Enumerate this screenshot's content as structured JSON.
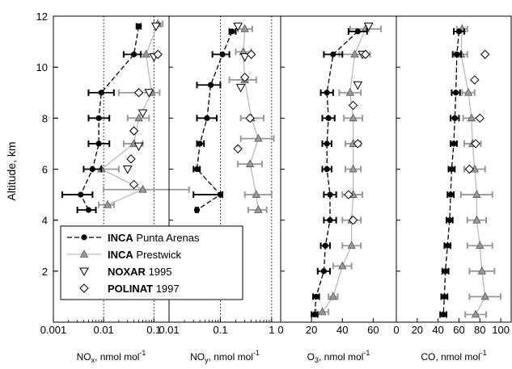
{
  "chart_data": {
    "type": "scatter",
    "ylabel": "Altitude, km",
    "ylim": [
      0,
      12
    ],
    "yticks": [
      "2",
      "4",
      "6",
      "8",
      "10",
      "12"
    ],
    "legend": {
      "placement": "lower-left",
      "entries": [
        {
          "bold": "INCA",
          "text": " Punta Arenas",
          "marker": "filled-circle",
          "line": "dashed",
          "color": "#000000"
        },
        {
          "bold": "INCA",
          "text": " Prestwick",
          "marker": "gray-triangle",
          "line": "solid",
          "color": "#999999"
        },
        {
          "bold": "NOXAR",
          "text": " 1995",
          "marker": "open-triangle-down",
          "line": "none",
          "color": "#000000"
        },
        {
          "bold": "POLINAT",
          "text": " 1997",
          "marker": "open-diamond",
          "line": "none",
          "color": "#000000"
        }
      ]
    },
    "panels": [
      {
        "id": "nox",
        "xlabel_main": "NO",
        "xlabel_sub": "x",
        "xlabel_rest": ", nmol mol",
        "xlabel_sup": "-1",
        "scale": "log",
        "xlim": [
          0.001,
          0.2
        ],
        "xticks": [
          {
            "v": 0.001,
            "t": "0.001"
          },
          {
            "v": 0.01,
            "t": "0.01"
          },
          {
            "v": 0.1,
            "t": "0.1"
          }
        ],
        "dotted_grid": [
          0.001,
          0.01,
          0.1
        ],
        "punta_arenas": [
          {
            "alt": 11.6,
            "x": 0.05,
            "lo": 0.045,
            "hi": 0.055
          },
          {
            "alt": 10.5,
            "x": 0.04,
            "lo": 0.025,
            "hi": 0.055
          },
          {
            "alt": 9.0,
            "x": 0.009,
            "lo": 0.005,
            "hi": 0.016
          },
          {
            "alt": 8.0,
            "x": 0.008,
            "lo": 0.005,
            "hi": 0.013
          },
          {
            "alt": 7.0,
            "x": 0.008,
            "lo": 0.005,
            "hi": 0.013
          },
          {
            "alt": 6.0,
            "x": 0.006,
            "lo": 0.004,
            "hi": 0.009
          },
          {
            "alt": 5.0,
            "x": 0.0035,
            "lo": 0.0015,
            "hi": 0.006
          },
          {
            "alt": 4.4,
            "x": 0.005,
            "lo": 0.003,
            "hi": 0.007
          }
        ],
        "prestwick": [
          {
            "alt": 11.7,
            "x": 0.12,
            "lo": 0.1,
            "hi": 0.15
          },
          {
            "alt": 10.5,
            "x": 0.07,
            "lo": 0.04,
            "hi": 0.1
          },
          {
            "alt": 9.0,
            "x": 0.09,
            "lo": 0.02,
            "hi": 0.13
          },
          {
            "alt": 8.0,
            "x": 0.05,
            "lo": 0.03,
            "hi": 0.08
          },
          {
            "alt": 7.0,
            "x": 0.04,
            "lo": 0.025,
            "hi": 0.06
          },
          {
            "alt": 6.0,
            "x": 0.009,
            "lo": 0.006,
            "hi": 0.02
          },
          {
            "alt": 5.2,
            "x": 0.06,
            "lo": 0.01,
            "hi": 0.5
          },
          {
            "alt": 4.6,
            "x": 0.012,
            "lo": 0.008,
            "hi": 0.016
          }
        ],
        "noxar": [
          {
            "alt": 11.6,
            "x": 0.11
          },
          {
            "alt": 10.4,
            "x": 0.1
          },
          {
            "alt": 9.0,
            "x": 0.08
          },
          {
            "alt": 8.2,
            "x": 0.06
          },
          {
            "alt": 6.9,
            "x": 0.05
          },
          {
            "alt": 6.0,
            "x": 0.03
          }
        ],
        "polinat": [
          {
            "alt": 10.5,
            "x": 0.12
          },
          {
            "alt": 9.0,
            "x": 0.05
          },
          {
            "alt": 7.5,
            "x": 0.04
          },
          {
            "alt": 6.4,
            "x": 0.035
          },
          {
            "alt": 5.4,
            "x": 0.04
          }
        ]
      },
      {
        "id": "noy",
        "xlabel_main": "NO",
        "xlabel_sub": "y",
        "xlabel_rest": ", nmol mol",
        "xlabel_sup": "-1",
        "scale": "log",
        "xlim": [
          0.01,
          1.5
        ],
        "xticks": [
          {
            "v": 0.01,
            "t": "0.01"
          },
          {
            "v": 0.1,
            "t": "0.1"
          },
          {
            "v": 1,
            "t": "1"
          }
        ],
        "dotted_grid": [
          0.1,
          1
        ],
        "punta_arenas": [
          {
            "alt": 11.4,
            "x": 0.17,
            "lo": 0.15,
            "hi": 0.2
          },
          {
            "alt": 10.5,
            "x": 0.11,
            "lo": 0.07,
            "hi": 0.15
          },
          {
            "alt": 9.3,
            "x": 0.065,
            "lo": 0.035,
            "hi": 0.1
          },
          {
            "alt": 8.0,
            "x": 0.055,
            "lo": 0.035,
            "hi": 0.085
          },
          {
            "alt": 7.0,
            "x": 0.04,
            "lo": 0.035,
            "hi": 0.048
          },
          {
            "alt": 6.0,
            "x": 0.035,
            "lo": 0.03,
            "hi": 0.04
          },
          {
            "alt": 5.0,
            "x": 0.1,
            "lo": 0.03,
            "hi": 0.11
          },
          {
            "alt": 4.4,
            "x": 0.035,
            "lo": 0.033,
            "hi": 0.037
          }
        ],
        "prestwick": [
          {
            "alt": 11.5,
            "x": 0.3,
            "lo": 0.22,
            "hi": 0.42
          },
          {
            "alt": 10.6,
            "x": 0.28,
            "lo": 0.2,
            "hi": 0.4
          },
          {
            "alt": 9.5,
            "x": 0.3,
            "lo": 0.15,
            "hi": 0.5
          },
          {
            "alt": 8.0,
            "x": 0.4,
            "lo": 0.25,
            "hi": 0.7
          },
          {
            "alt": 7.2,
            "x": 0.55,
            "lo": 0.25,
            "hi": 1.1
          },
          {
            "alt": 6.2,
            "x": 0.38,
            "lo": 0.22,
            "hi": 0.65
          },
          {
            "alt": 5.0,
            "x": 0.5,
            "lo": 0.3,
            "hi": 1.0
          },
          {
            "alt": 4.4,
            "x": 0.55,
            "lo": 0.35,
            "hi": 0.8
          }
        ],
        "noxar": [
          {
            "alt": 11.6,
            "x": 0.22
          },
          {
            "alt": 10.4,
            "x": 0.3
          },
          {
            "alt": 9.2,
            "x": 0.25
          }
        ],
        "polinat": [
          {
            "alt": 10.5,
            "x": 0.4
          },
          {
            "alt": 9.6,
            "x": 0.3
          },
          {
            "alt": 8.0,
            "x": 0.38
          },
          {
            "alt": 6.8,
            "x": 0.22
          }
        ]
      },
      {
        "id": "o3",
        "xlabel_main": "O",
        "xlabel_sub": "3",
        "xlabel_rest": ", nmol mol",
        "xlabel_sup": "-1",
        "scale": "linear",
        "xlim": [
          0,
          75
        ],
        "xticks": [
          {
            "v": 0,
            "t": "0"
          },
          {
            "v": 20,
            "t": "20"
          },
          {
            "v": 40,
            "t": "40"
          },
          {
            "v": 60,
            "t": "60"
          }
        ],
        "dotted_grid": [],
        "punta_arenas": [
          {
            "alt": 11.4,
            "x": 50,
            "lo": 44,
            "hi": 56
          },
          {
            "alt": 10.5,
            "x": 34,
            "lo": 28,
            "hi": 40
          },
          {
            "alt": 9.0,
            "x": 30,
            "lo": 26,
            "hi": 34
          },
          {
            "alt": 8.0,
            "x": 31,
            "lo": 27,
            "hi": 35
          },
          {
            "alt": 7.0,
            "x": 30,
            "lo": 27,
            "hi": 33
          },
          {
            "alt": 6.0,
            "x": 30,
            "lo": 27,
            "hi": 33
          },
          {
            "alt": 5.0,
            "x": 32,
            "lo": 28,
            "hi": 36
          },
          {
            "alt": 4.0,
            "x": 32,
            "lo": 28,
            "hi": 36
          },
          {
            "alt": 3.0,
            "x": 29,
            "lo": 26,
            "hi": 32
          },
          {
            "alt": 2.0,
            "x": 28,
            "lo": 24,
            "hi": 32
          },
          {
            "alt": 1.0,
            "x": 23,
            "lo": 21,
            "hi": 25
          },
          {
            "alt": 0.3,
            "x": 22,
            "lo": 20,
            "hi": 24
          }
        ],
        "prestwick": [
          {
            "alt": 11.5,
            "x": 55,
            "lo": 45,
            "hi": 65
          },
          {
            "alt": 10.5,
            "x": 48,
            "lo": 38,
            "hi": 58
          },
          {
            "alt": 9.0,
            "x": 45,
            "lo": 38,
            "hi": 52
          },
          {
            "alt": 8.0,
            "x": 47,
            "lo": 41,
            "hi": 53
          },
          {
            "alt": 7.0,
            "x": 47,
            "lo": 42,
            "hi": 52
          },
          {
            "alt": 6.0,
            "x": 47,
            "lo": 42,
            "hi": 52
          },
          {
            "alt": 5.0,
            "x": 47,
            "lo": 40,
            "hi": 53
          },
          {
            "alt": 4.0,
            "x": 46,
            "lo": 40,
            "hi": 52
          },
          {
            "alt": 3.0,
            "x": 46,
            "lo": 40,
            "hi": 52
          },
          {
            "alt": 2.2,
            "x": 40,
            "lo": 34,
            "hi": 46
          },
          {
            "alt": 1.0,
            "x": 34,
            "lo": 31,
            "hi": 37
          },
          {
            "alt": 0.4,
            "x": 27,
            "lo": 23,
            "hi": 31
          }
        ],
        "noxar": [
          {
            "alt": 11.6,
            "x": 57
          },
          {
            "alt": 10.5,
            "x": 53
          },
          {
            "alt": 9.3,
            "x": 50
          }
        ],
        "polinat": [
          {
            "alt": 10.5,
            "x": 55
          },
          {
            "alt": 8.5,
            "x": 47
          },
          {
            "alt": 7.0,
            "x": 50
          },
          {
            "alt": 5.0,
            "x": 44
          },
          {
            "alt": 4.0,
            "x": 47
          }
        ]
      },
      {
        "id": "co",
        "xlabel_main": "CO",
        "xlabel_sub": "",
        "xlabel_rest": ", nmol mol",
        "xlabel_sup": "-1",
        "scale": "linear",
        "xlim": [
          0,
          110
        ],
        "xticks": [
          {
            "v": 0,
            "t": "0"
          },
          {
            "v": 20,
            "t": "20"
          },
          {
            "v": 40,
            "t": "40"
          },
          {
            "v": 60,
            "t": "60"
          },
          {
            "v": 80,
            "t": "80"
          },
          {
            "v": 100,
            "t": "100"
          }
        ],
        "dotted_grid": [],
        "punta_arenas": [
          {
            "alt": 11.4,
            "x": 60,
            "lo": 55,
            "hi": 65
          },
          {
            "alt": 10.5,
            "x": 58,
            "lo": 54,
            "hi": 62
          },
          {
            "alt": 9.0,
            "x": 57,
            "lo": 53,
            "hi": 61
          },
          {
            "alt": 8.0,
            "x": 56,
            "lo": 52,
            "hi": 60
          },
          {
            "alt": 7.0,
            "x": 55,
            "lo": 52,
            "hi": 58
          },
          {
            "alt": 6.0,
            "x": 53,
            "lo": 50,
            "hi": 56
          },
          {
            "alt": 5.0,
            "x": 52,
            "lo": 49,
            "hi": 55
          },
          {
            "alt": 4.0,
            "x": 51,
            "lo": 48,
            "hi": 54
          },
          {
            "alt": 3.0,
            "x": 49,
            "lo": 46,
            "hi": 52
          },
          {
            "alt": 2.0,
            "x": 47,
            "lo": 44,
            "hi": 50
          },
          {
            "alt": 1.0,
            "x": 46,
            "lo": 43,
            "hi": 49
          },
          {
            "alt": 0.3,
            "x": 45,
            "lo": 42,
            "hi": 48
          }
        ],
        "prestwick": [
          {
            "alt": 11.5,
            "x": 63,
            "lo": 58,
            "hi": 68
          },
          {
            "alt": 10.5,
            "x": 62,
            "lo": 56,
            "hi": 68
          },
          {
            "alt": 9.0,
            "x": 69,
            "lo": 63,
            "hi": 75
          },
          {
            "alt": 8.0,
            "x": 72,
            "lo": 64,
            "hi": 80
          },
          {
            "alt": 7.0,
            "x": 73,
            "lo": 65,
            "hi": 81
          },
          {
            "alt": 6.0,
            "x": 75,
            "lo": 65,
            "hi": 85
          },
          {
            "alt": 5.0,
            "x": 77,
            "lo": 62,
            "hi": 92
          },
          {
            "alt": 4.0,
            "x": 77,
            "lo": 68,
            "hi": 86
          },
          {
            "alt": 3.0,
            "x": 80,
            "lo": 68,
            "hi": 92
          },
          {
            "alt": 2.0,
            "x": 82,
            "lo": 70,
            "hi": 94
          },
          {
            "alt": 1.0,
            "x": 85,
            "lo": 70,
            "hi": 100
          },
          {
            "alt": 0.3,
            "x": 76,
            "lo": 66,
            "hi": 86
          }
        ],
        "noxar": [],
        "polinat": [
          {
            "alt": 10.5,
            "x": 85
          },
          {
            "alt": 9.5,
            "x": 75
          },
          {
            "alt": 8.0,
            "x": 80
          },
          {
            "alt": 7.0,
            "x": 76
          },
          {
            "alt": 6.0,
            "x": 70
          }
        ]
      }
    ]
  }
}
